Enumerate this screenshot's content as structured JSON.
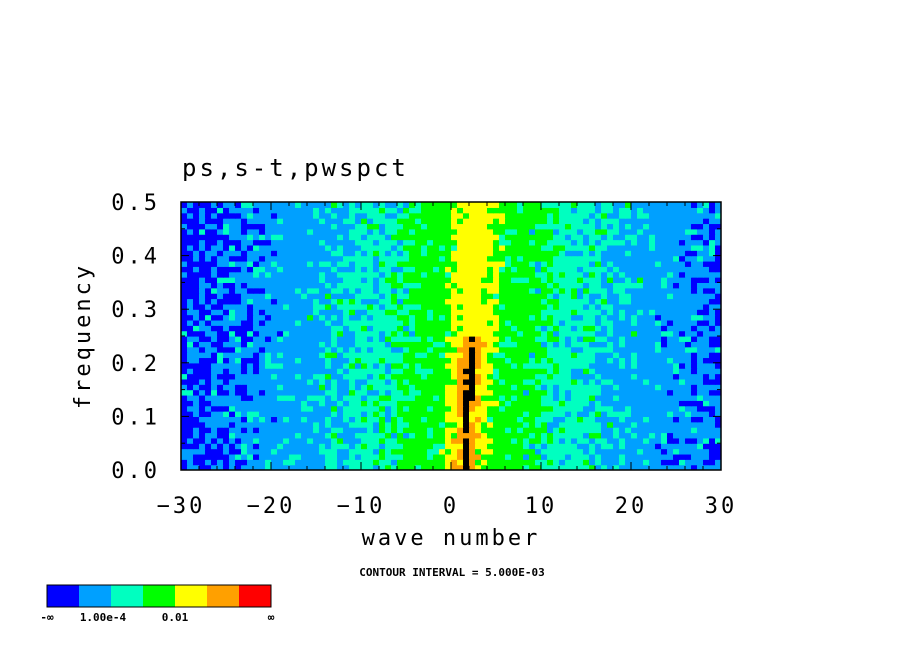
{
  "chart_data": {
    "type": "heatmap",
    "title": "ps,s-t,pwspct",
    "xlabel": "wave number",
    "ylabel": "frequency",
    "xlim": [
      -30,
      30
    ],
    "ylim": [
      0.0,
      0.5
    ],
    "x_ticks": [
      -30,
      -20,
      -10,
      0,
      10,
      20,
      30
    ],
    "x_tick_labels": [
      "−30",
      "−20",
      "−10",
      "0",
      "10",
      "20",
      "30"
    ],
    "y_ticks": [
      0.0,
      0.1,
      0.2,
      0.3,
      0.4,
      0.5
    ],
    "y_tick_labels": [
      "0.0",
      "0.1",
      "0.2",
      "0.3",
      "0.4",
      "0.5"
    ],
    "contour_note": "CONTOUR INTERVAL = 5.000E-03",
    "colorbar": {
      "colors": [
        "#0000ff",
        "#00a0ff",
        "#00ffc0",
        "#00ff00",
        "#ffff00",
        "#ffa000",
        "#ff0000"
      ],
      "labels": [
        "-∞",
        "1.00e-4",
        "0.01",
        "∞"
      ]
    },
    "band_model": {
      "peak": [
        [
          1.5,
          0.0
        ],
        [
          3.0,
          0.5
        ]
      ],
      "level_halfwidths": [
        28,
        15,
        8,
        2.6,
        1.2,
        0.5
      ],
      "noise": 0.9
    }
  }
}
